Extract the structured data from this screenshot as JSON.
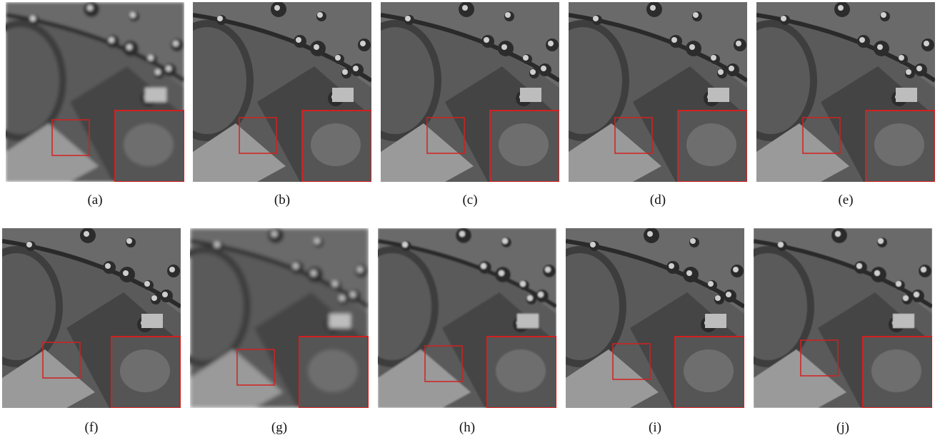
{
  "panels": [
    {
      "label": "(a)"
    },
    {
      "label": "(b)"
    },
    {
      "label": "(c)"
    },
    {
      "label": "(d)"
    },
    {
      "label": "(e)"
    },
    {
      "label": "(f)"
    },
    {
      "label": "(g)"
    },
    {
      "label": "(h)"
    },
    {
      "label": "(i)"
    },
    {
      "label": "(j)"
    }
  ]
}
